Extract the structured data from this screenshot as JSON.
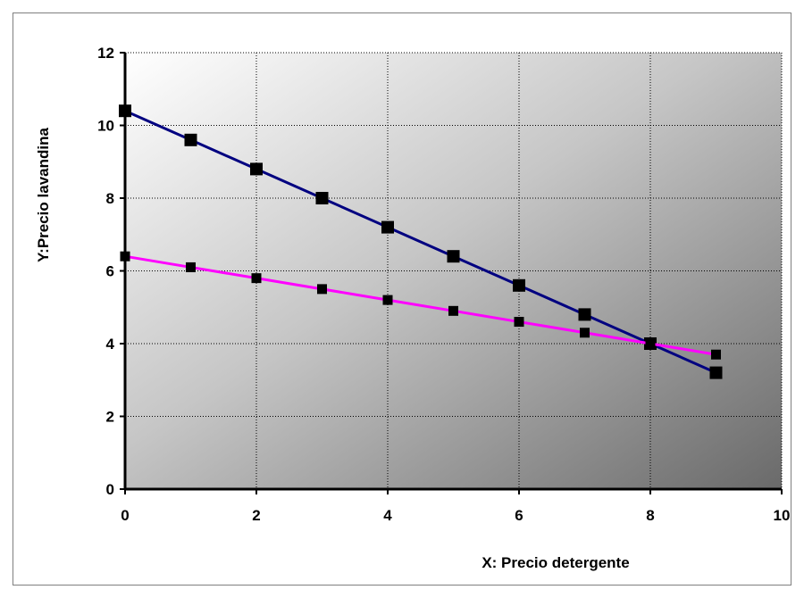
{
  "chart_data": {
    "type": "line",
    "title": "",
    "xlabel": "X: Precio detergente",
    "ylabel": "Y:Precio  lavandina",
    "xlim": [
      0,
      10
    ],
    "ylim": [
      0,
      12
    ],
    "x_ticks": [
      "0",
      "2",
      "4",
      "6",
      "8",
      "10"
    ],
    "y_ticks": [
      "0",
      "2",
      "4",
      "6",
      "8",
      "10",
      "12"
    ],
    "grid": true,
    "legend": "none",
    "series": [
      {
        "color": "#000080",
        "marker": "square",
        "points": [
          {
            "x": 0,
            "y": 10.4
          },
          {
            "x": 1,
            "y": 9.6
          },
          {
            "x": 2,
            "y": 8.8
          },
          {
            "x": 3,
            "y": 8.0
          },
          {
            "x": 4,
            "y": 7.2
          },
          {
            "x": 5,
            "y": 6.4
          },
          {
            "x": 6,
            "y": 5.6
          },
          {
            "x": 7,
            "y": 4.8
          },
          {
            "x": 8,
            "y": 4.0
          },
          {
            "x": 9,
            "y": 3.2
          }
        ]
      },
      {
        "color": "#ff00ff",
        "marker": "square",
        "points": [
          {
            "x": 0,
            "y": 6.4
          },
          {
            "x": 1,
            "y": 6.1
          },
          {
            "x": 2,
            "y": 5.8
          },
          {
            "x": 3,
            "y": 5.5
          },
          {
            "x": 4,
            "y": 5.2
          },
          {
            "x": 5,
            "y": 4.9
          },
          {
            "x": 6,
            "y": 4.6
          },
          {
            "x": 7,
            "y": 4.3
          },
          {
            "x": 8,
            "y": 4.0
          },
          {
            "x": 9,
            "y": 3.7
          }
        ]
      }
    ]
  }
}
